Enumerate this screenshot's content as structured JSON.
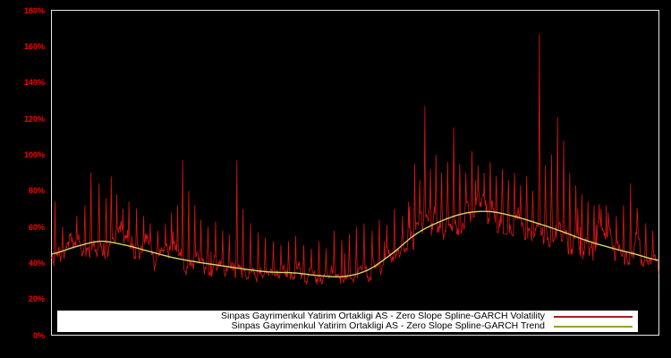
{
  "window": {
    "background": "#000000"
  },
  "chart_data": {
    "type": "line",
    "title": "",
    "xlabel": "",
    "ylabel": "",
    "ylim": [
      0,
      180
    ],
    "grid": false,
    "legend_position": "bottom-center",
    "axis_label_color": "#ff0000",
    "border_color": "#e8e8e8",
    "y_ticks": [
      {
        "label": "0%",
        "value": 0
      },
      {
        "label": "20%",
        "value": 20
      },
      {
        "label": "40%",
        "value": 40
      },
      {
        "label": "60%",
        "value": 60
      },
      {
        "label": "80%",
        "value": 80
      },
      {
        "label": "100%",
        "value": 100
      },
      {
        "label": "120%",
        "value": 120
      },
      {
        "label": "140%",
        "value": 140
      },
      {
        "label": "160%",
        "value": 160
      },
      {
        "label": "180%",
        "value": 180
      }
    ],
    "series": [
      {
        "name": "Sinpas Gayrimenkul Yatirim Ortakligi AS - Zero Slope Spline-GARCH Volatility",
        "color": "#dd1515",
        "legend_color": "#aa1a1a",
        "style": "noisy"
      },
      {
        "name": "Sinpas Gayrimenkul Yatirim Ortakligi AS - Zero Slope Spline-GARCH Trend",
        "color": "#d4d46a",
        "legend_color": "#9c9c30",
        "style": "smooth"
      }
    ],
    "trend_knots": {
      "x": [
        0,
        0.04,
        0.08,
        0.12,
        0.16,
        0.2,
        0.24,
        0.28,
        0.32,
        0.36,
        0.4,
        0.44,
        0.48,
        0.52,
        0.56,
        0.6,
        0.64,
        0.68,
        0.72,
        0.76,
        0.8,
        0.84,
        0.88,
        0.92,
        0.96,
        1.0
      ],
      "y": [
        45,
        49,
        52,
        50,
        46.5,
        43,
        40.5,
        38.5,
        36.5,
        35,
        34.5,
        33,
        32.5,
        36,
        45,
        56,
        63,
        67.5,
        68.5,
        66,
        62,
        57.5,
        52.5,
        48.5,
        45,
        41.5
      ]
    },
    "volatility": {
      "n_points": 1200,
      "seed": 1234,
      "ar_coeff": 0.86,
      "noise_sd": 2.3,
      "spike_prob": 0.028,
      "spike_scale": 8,
      "min_offset": -11,
      "spikes": [
        [
          0.006,
          74
        ],
        [
          0.018,
          60
        ],
        [
          0.03,
          56
        ],
        [
          0.042,
          66
        ],
        [
          0.055,
          72
        ],
        [
          0.065,
          90
        ],
        [
          0.078,
          84
        ],
        [
          0.09,
          76
        ],
        [
          0.098,
          88
        ],
        [
          0.108,
          78
        ],
        [
          0.118,
          70
        ],
        [
          0.128,
          74
        ],
        [
          0.14,
          70
        ],
        [
          0.152,
          66
        ],
        [
          0.163,
          62
        ],
        [
          0.175,
          58
        ],
        [
          0.188,
          62
        ],
        [
          0.198,
          68
        ],
        [
          0.208,
          72
        ],
        [
          0.216,
          97
        ],
        [
          0.226,
          80
        ],
        [
          0.236,
          72
        ],
        [
          0.246,
          64
        ],
        [
          0.258,
          60
        ],
        [
          0.27,
          63
        ],
        [
          0.282,
          58
        ],
        [
          0.293,
          56
        ],
        [
          0.305,
          97
        ],
        [
          0.315,
          70
        ],
        [
          0.328,
          62
        ],
        [
          0.34,
          57
        ],
        [
          0.352,
          54
        ],
        [
          0.365,
          52
        ],
        [
          0.378,
          50
        ],
        [
          0.39,
          52
        ],
        [
          0.402,
          55
        ],
        [
          0.415,
          50
        ],
        [
          0.428,
          48
        ],
        [
          0.44,
          52
        ],
        [
          0.452,
          48
        ],
        [
          0.465,
          58
        ],
        [
          0.478,
          53
        ],
        [
          0.49,
          56
        ],
        [
          0.502,
          60
        ],
        [
          0.515,
          62
        ],
        [
          0.528,
          58
        ],
        [
          0.54,
          64
        ],
        [
          0.552,
          61
        ],
        [
          0.565,
          70
        ],
        [
          0.578,
          66
        ],
        [
          0.588,
          74
        ],
        [
          0.598,
          95
        ],
        [
          0.606,
          86
        ],
        [
          0.615,
          127
        ],
        [
          0.624,
          92
        ],
        [
          0.633,
          100
        ],
        [
          0.642,
          90
        ],
        [
          0.652,
          96
        ],
        [
          0.662,
          115
        ],
        [
          0.672,
          95
        ],
        [
          0.682,
          90
        ],
        [
          0.692,
          102
        ],
        [
          0.702,
          94
        ],
        [
          0.712,
          90
        ],
        [
          0.722,
          96
        ],
        [
          0.732,
          88
        ],
        [
          0.742,
          92
        ],
        [
          0.752,
          86
        ],
        [
          0.762,
          90
        ],
        [
          0.772,
          83
        ],
        [
          0.782,
          88
        ],
        [
          0.792,
          80
        ],
        [
          0.803,
          167
        ],
        [
          0.813,
          94
        ],
        [
          0.823,
          100
        ],
        [
          0.833,
          121
        ],
        [
          0.843,
          108
        ],
        [
          0.853,
          90
        ],
        [
          0.863,
          83
        ],
        [
          0.873,
          78
        ],
        [
          0.883,
          74
        ],
        [
          0.893,
          72
        ],
        [
          0.905,
          70
        ],
        [
          0.917,
          68
        ],
        [
          0.93,
          66
        ],
        [
          0.942,
          72
        ],
        [
          0.953,
          84
        ],
        [
          0.965,
          66
        ],
        [
          0.978,
          62
        ],
        [
          0.99,
          58
        ]
      ]
    }
  }
}
